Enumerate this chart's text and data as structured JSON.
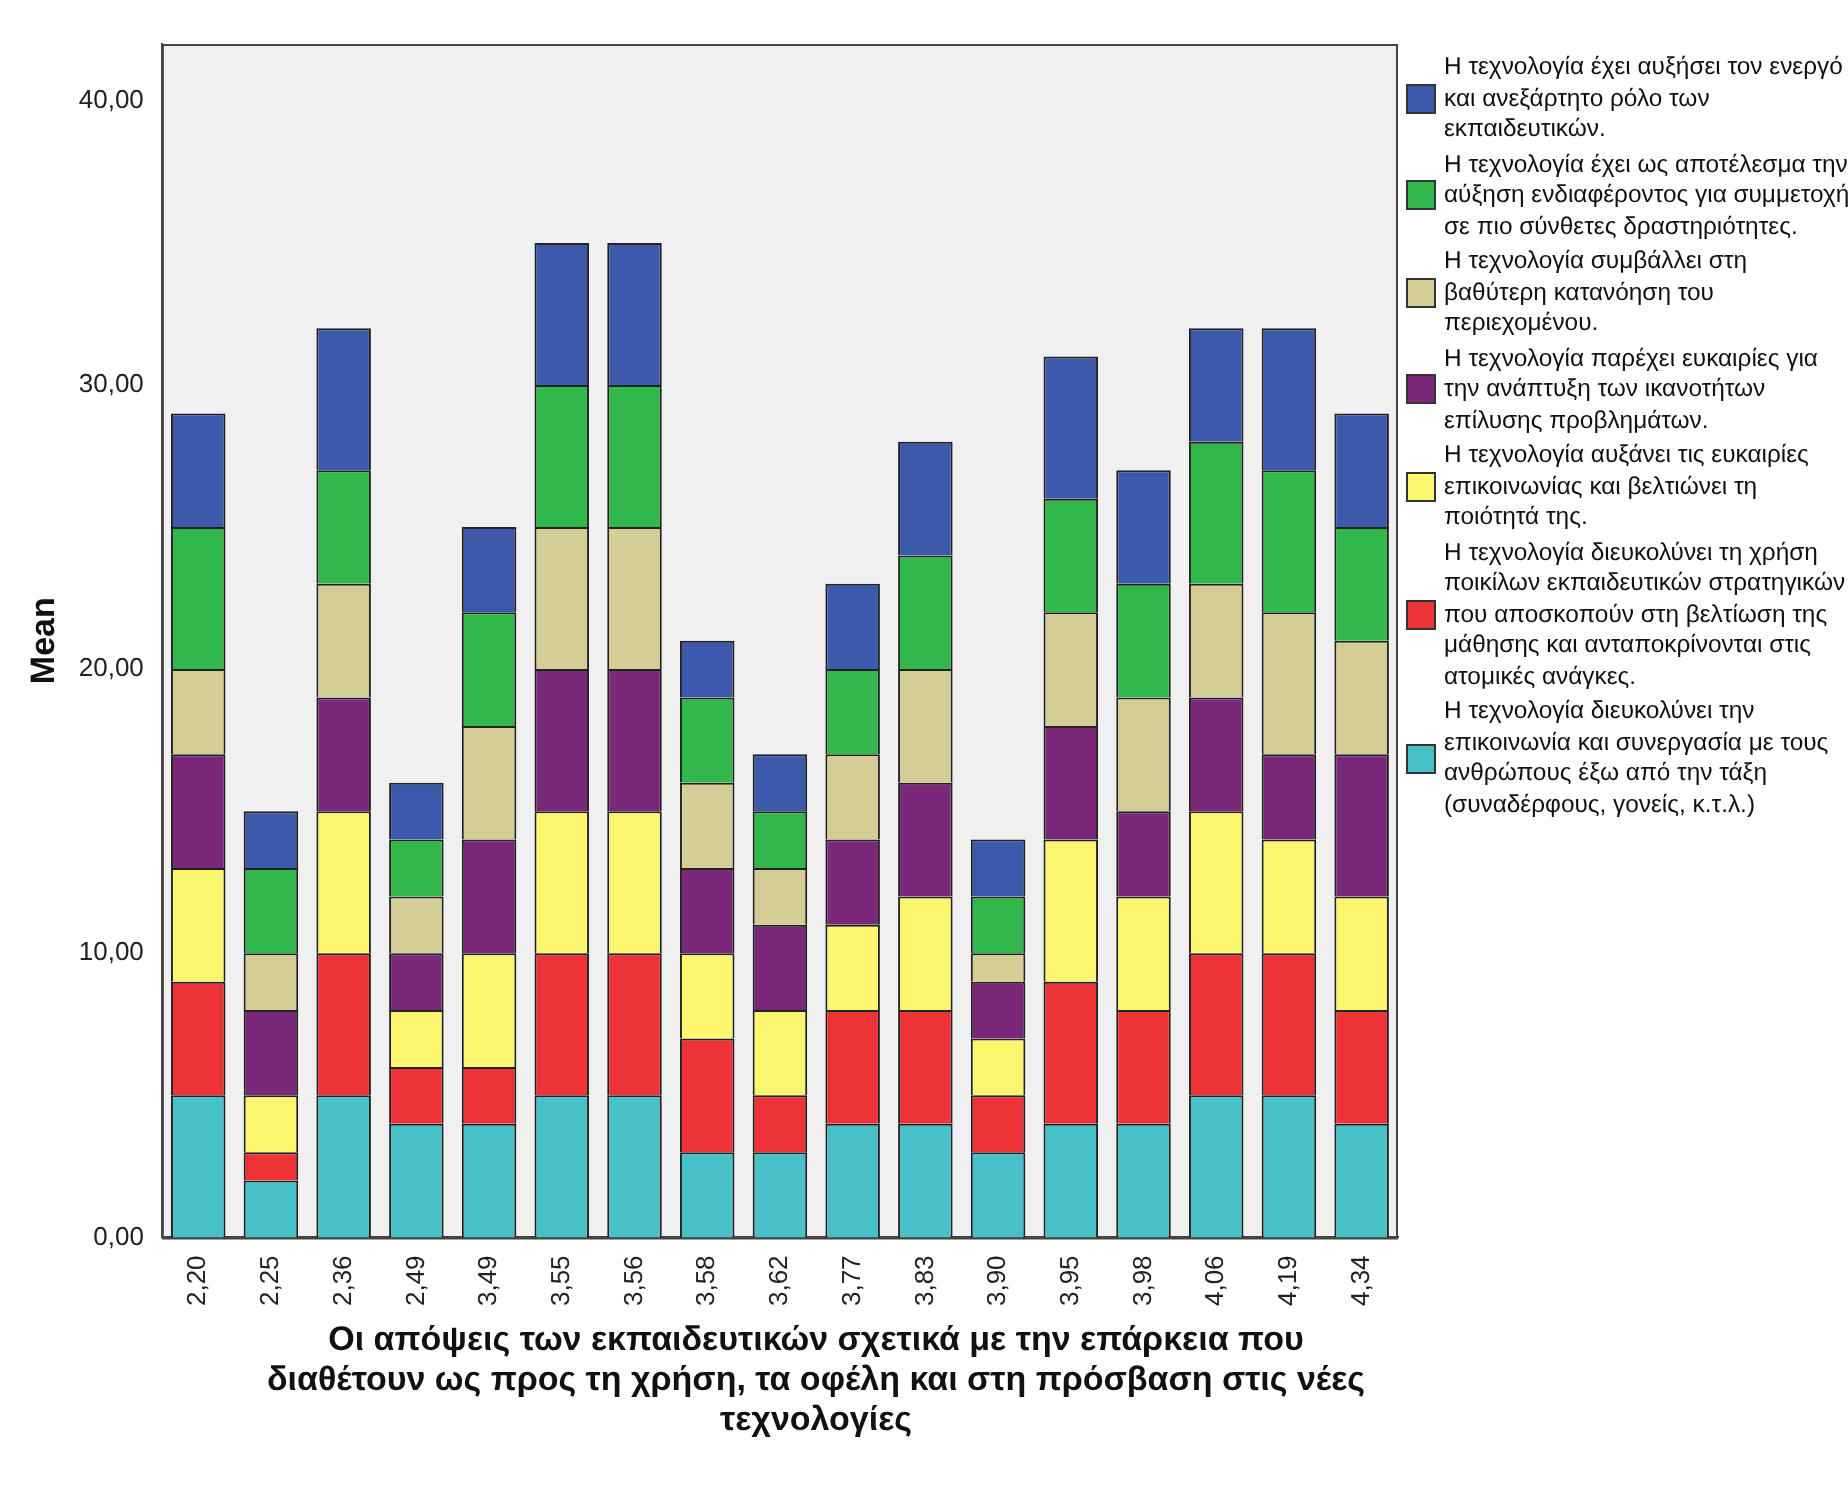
{
  "chart_data": {
    "type": "bar",
    "stacked": true,
    "xlabel": "Οι απόψεις των εκπαιδευτικών σχετικά με την επάρκεια που διαθέτουν ως προς τη χρήση, τα οφέλη και στη πρόσβαση στις νέες τεχνολογίες",
    "ylabel": "Mean",
    "categories": [
      "2,20",
      "2,25",
      "2,36",
      "2,49",
      "3,49",
      "3,55",
      "3,56",
      "3,58",
      "3,62",
      "3,77",
      "3,83",
      "3,90",
      "3,95",
      "3,98",
      "4,06",
      "4,19",
      "4,34"
    ],
    "ylim": [
      0,
      42
    ],
    "yticks": [
      {
        "value": 0,
        "label": "0,00"
      },
      {
        "value": 10,
        "label": "10,00"
      },
      {
        "value": 20,
        "label": "20,00"
      },
      {
        "value": 30,
        "label": "30,00"
      },
      {
        "value": 40,
        "label": "40,00"
      }
    ],
    "grid": false,
    "legend": "right",
    "series": [
      {
        "name": "Η τεχνολογία διευκολύνει την επικοινωνία και συνεργασία με τους ανθρώπους έξω από την τάξη (συναδέρφους, γονείς, κ.τ.λ.)",
        "color": "#48c0c8",
        "values": [
          5,
          2,
          5,
          4,
          4,
          5,
          5,
          3,
          3,
          4,
          4,
          3,
          4,
          4,
          5,
          5,
          4
        ]
      },
      {
        "name": "Η τεχνολογία διευκολύνει τη χρήση ποικίλων εκπαιδευτικών στρατηγικών που αποσκοπούν στη βελτίωση της μάθησης και ανταποκρίνονται στις ατομικές ανάγκες.",
        "color": "#ee3338",
        "values": [
          4,
          1,
          5,
          2,
          2,
          5,
          5,
          4,
          2,
          4,
          4,
          2,
          5,
          4,
          5,
          5,
          4
        ]
      },
      {
        "name": "Η τεχνολογία αυξάνει τις ευκαιρίες επικοινωνίας και βελτιώνει τη ποιότητά της.",
        "color": "#faf76e",
        "values": [
          4,
          2,
          5,
          2,
          4,
          5,
          5,
          3,
          3,
          3,
          4,
          2,
          5,
          4,
          5,
          4,
          4
        ]
      },
      {
        "name": "Η τεχνολογία παρέχει ευκαιρίες για την ανάπτυξη των ικανοτήτων επίλυσης προβλημάτων.",
        "color": "#7b287b",
        "values": [
          4,
          3,
          4,
          2,
          4,
          5,
          5,
          3,
          3,
          3,
          4,
          2,
          4,
          3,
          4,
          3,
          5
        ]
      },
      {
        "name": "Η τεχνολογία συμβάλλει στη βαθύτερη κατανόηση του περιεχομένου.",
        "color": "#d4cd96",
        "values": [
          3,
          2,
          4,
          2,
          4,
          5,
          5,
          3,
          2,
          3,
          4,
          1,
          4,
          4,
          4,
          5,
          4
        ]
      },
      {
        "name": "Η τεχνολογία έχει ως αποτέλεσμα την αύξηση ενδιαφέροντος για συμμετοχή σε πιο σύνθετες δραστηριότητες.",
        "color": "#31b84a",
        "values": [
          5,
          3,
          4,
          2,
          4,
          5,
          5,
          3,
          2,
          3,
          4,
          2,
          4,
          4,
          5,
          5,
          4
        ]
      },
      {
        "name": "Η τεχνολογία έχει αυξήσει τον ενεργό και ανεξάρτητο ρόλο των εκπαιδευτικών.",
        "color": "#3d59ab",
        "values": [
          4,
          2,
          5,
          2,
          3,
          5,
          5,
          2,
          2,
          3,
          4,
          2,
          5,
          4,
          4,
          5,
          4
        ]
      }
    ]
  }
}
